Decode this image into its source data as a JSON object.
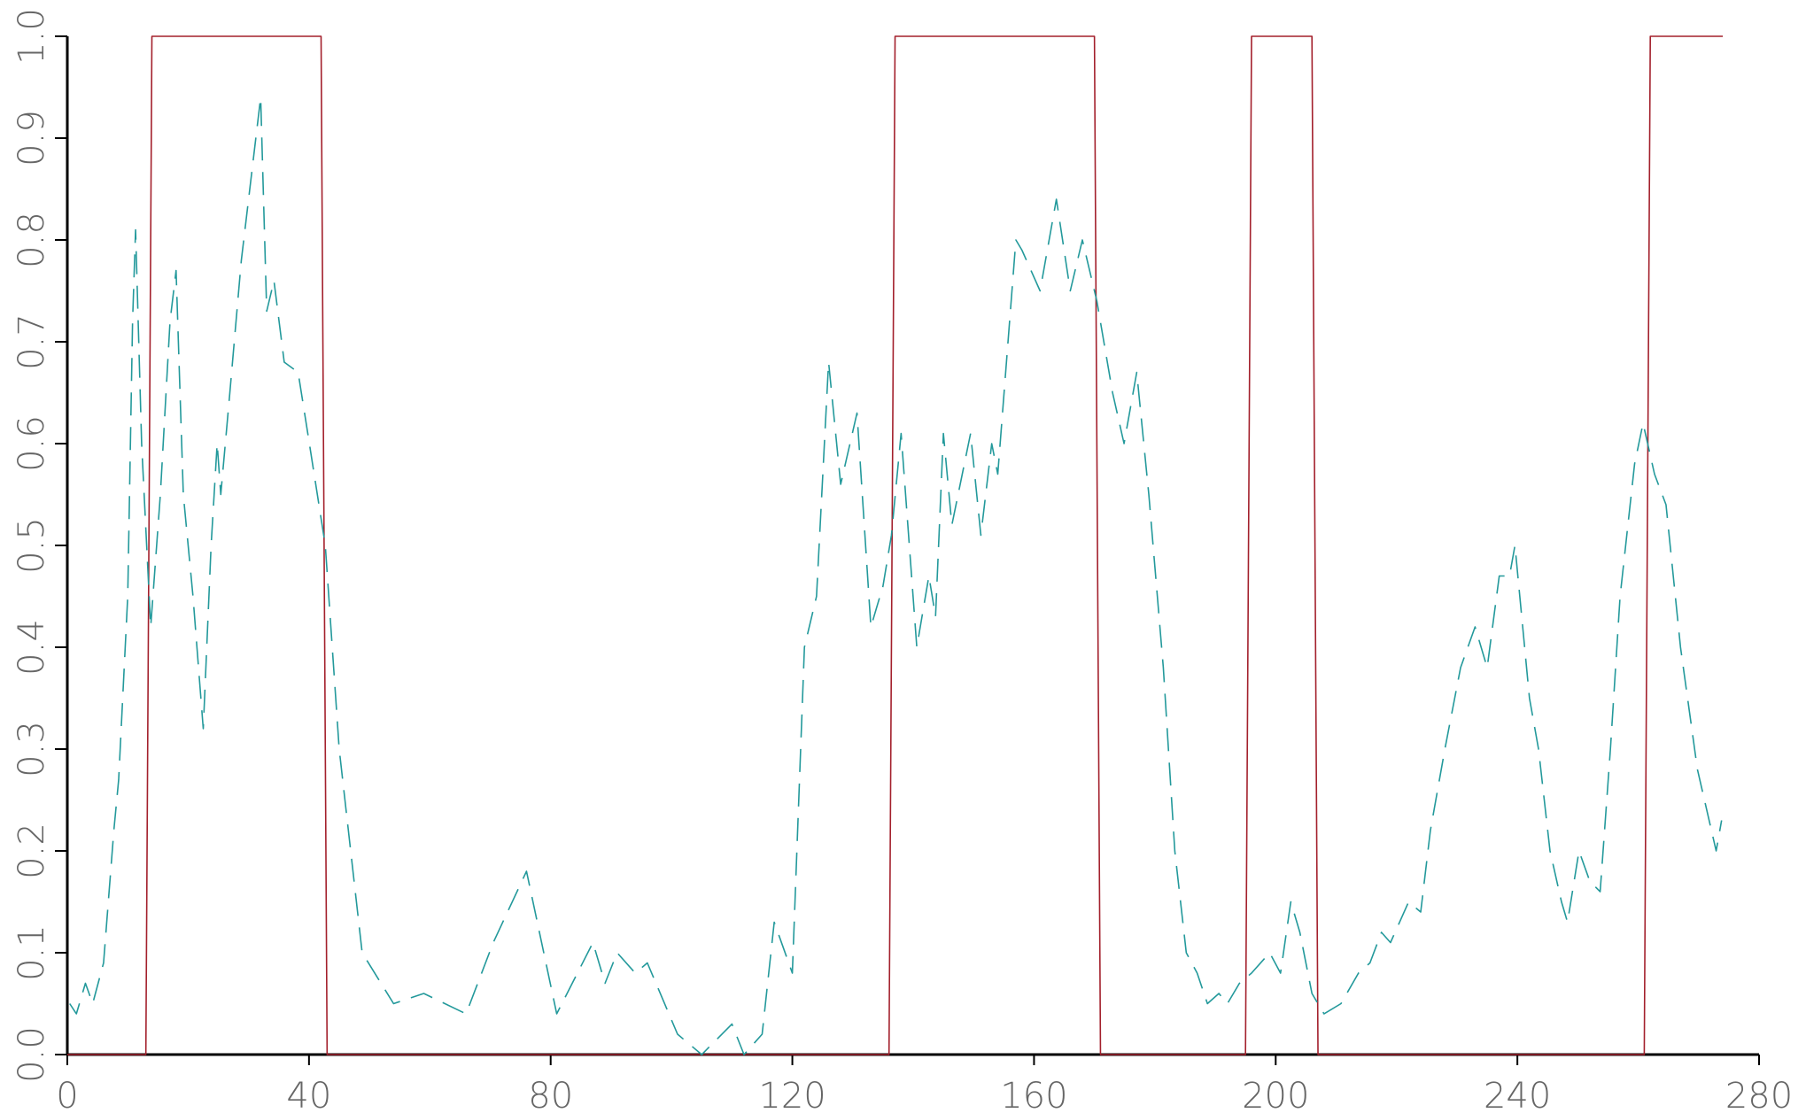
{
  "chart_data": {
    "type": "line",
    "xlim": [
      0,
      280
    ],
    "ylim": [
      0,
      1
    ],
    "xticks": [
      0,
      40,
      80,
      120,
      160,
      200,
      240,
      280
    ],
    "yticks": [
      {
        "value": 0,
        "label": "0.0"
      },
      0.1,
      0.2,
      0.3,
      0.4,
      0.5,
      0.6,
      0.7,
      0.8,
      0.9,
      {
        "value": 1,
        "label": "1.0"
      }
    ],
    "grid": false,
    "series": [
      {
        "color": "#a3202c",
        "line_style": "solid",
        "x": [
          0,
          13,
          14,
          42,
          43,
          136,
          137,
          170,
          171,
          195,
          196,
          206,
          207,
          261,
          262,
          274
        ],
        "values": [
          0,
          0,
          1,
          1,
          0,
          0,
          1,
          1,
          0,
          0,
          1,
          1,
          0,
          0,
          1,
          1
        ]
      },
      {
        "color": "#23999b",
        "line_style": "dashed",
        "x": [
          0.4,
          1.5,
          3,
          4.2,
          6,
          7.7,
          8.5,
          10,
          10.8,
          11.3,
          12.3,
          13.8,
          15.4,
          17,
          18,
          19.2,
          20.8,
          22.5,
          23.8,
          24.8,
          25.4,
          26.9,
          28.8,
          32,
          33,
          34.2,
          35.9,
          38.2,
          39.8,
          42.7,
          45,
          48.8,
          54,
          59,
          66,
          70.5,
          76,
          81,
          87,
          89,
          91,
          94,
          96,
          101,
          105,
          110,
          112,
          115,
          117,
          120,
          122,
          124,
          126,
          128,
          130.7,
          133,
          135,
          136.4,
          138,
          140.6,
          142.6,
          143.7,
          145,
          146.4,
          149.5,
          151.2,
          153,
          154,
          157,
          158,
          161,
          163.7,
          166,
          168,
          170.4,
          173,
          174.9,
          177,
          179,
          181.4,
          183.3,
          185.2,
          187,
          188.7,
          190.6,
          192,
          194,
          196,
          199,
          200.8,
          202.5,
          204,
          206,
          208,
          210.8,
          213.7,
          215.6,
          217.5,
          219,
          222,
          224,
          225.6,
          228,
          230.6,
          233,
          235,
          237,
          238.7,
          239.6,
          242,
          243.5,
          245.4,
          247.3,
          248.3,
          250.2,
          252,
          253.7,
          255.4,
          257,
          259.4,
          260.8,
          262.7,
          264.6,
          267,
          269.8,
          272.9,
          273.8
        ],
        "values": [
          0.05,
          0.04,
          0.07,
          0.05,
          0.09,
          0.22,
          0.27,
          0.45,
          0.72,
          0.81,
          0.6,
          0.42,
          0.55,
          0.72,
          0.77,
          0.55,
          0.45,
          0.32,
          0.5,
          0.6,
          0.55,
          0.65,
          0.78,
          0.94,
          0.73,
          0.76,
          0.68,
          0.67,
          0.61,
          0.5,
          0.3,
          0.1,
          0.05,
          0.06,
          0.04,
          0.11,
          0.18,
          0.04,
          0.11,
          0.07,
          0.1,
          0.08,
          0.09,
          0.02,
          0.0,
          0.03,
          0.0,
          0.02,
          0.13,
          0.08,
          0.4,
          0.45,
          0.68,
          0.56,
          0.63,
          0.42,
          0.46,
          0.51,
          0.61,
          0.4,
          0.47,
          0.43,
          0.61,
          0.52,
          0.61,
          0.51,
          0.6,
          0.57,
          0.8,
          0.79,
          0.75,
          0.84,
          0.75,
          0.8,
          0.74,
          0.65,
          0.6,
          0.67,
          0.55,
          0.38,
          0.2,
          0.1,
          0.08,
          0.05,
          0.06,
          0.05,
          0.07,
          0.08,
          0.1,
          0.08,
          0.15,
          0.12,
          0.06,
          0.04,
          0.05,
          0.08,
          0.09,
          0.12,
          0.11,
          0.15,
          0.14,
          0.22,
          0.3,
          0.38,
          0.42,
          0.38,
          0.47,
          0.47,
          0.5,
          0.35,
          0.3,
          0.2,
          0.15,
          0.13,
          0.2,
          0.17,
          0.16,
          0.3,
          0.45,
          0.58,
          0.62,
          0.57,
          0.54,
          0.4,
          0.28,
          0.2,
          0.23
        ]
      }
    ]
  }
}
